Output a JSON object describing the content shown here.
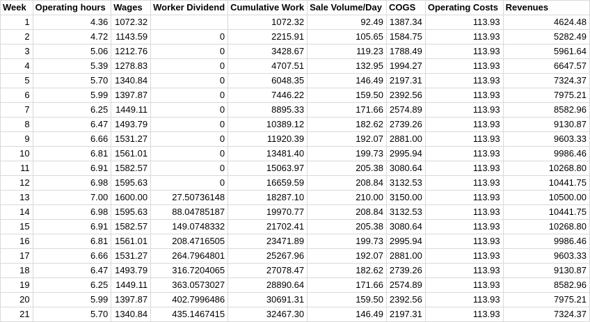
{
  "sheet": {
    "columns": [
      "Week",
      "Operating hours",
      "Wages",
      "Worker Dividend",
      "Cumulative Work",
      "Sale Volume/Day",
      "COGS",
      "Operating Costs",
      "Revenues"
    ],
    "rows": [
      [
        "1",
        "4.36",
        "1072.32",
        "",
        "1072.32",
        "92.49",
        "1387.34",
        "113.93",
        "4624.48"
      ],
      [
        "2",
        "4.72",
        "1143.59",
        "0",
        "2215.91",
        "105.65",
        "1584.75",
        "113.93",
        "5282.49"
      ],
      [
        "3",
        "5.06",
        "1212.76",
        "0",
        "3428.67",
        "119.23",
        "1788.49",
        "113.93",
        "5961.64"
      ],
      [
        "4",
        "5.39",
        "1278.83",
        "0",
        "4707.51",
        "132.95",
        "1994.27",
        "113.93",
        "6647.57"
      ],
      [
        "5",
        "5.70",
        "1340.84",
        "0",
        "6048.35",
        "146.49",
        "2197.31",
        "113.93",
        "7324.37"
      ],
      [
        "6",
        "5.99",
        "1397.87",
        "0",
        "7446.22",
        "159.50",
        "2392.56",
        "113.93",
        "7975.21"
      ],
      [
        "7",
        "6.25",
        "1449.11",
        "0",
        "8895.33",
        "171.66",
        "2574.89",
        "113.93",
        "8582.96"
      ],
      [
        "8",
        "6.47",
        "1493.79",
        "0",
        "10389.12",
        "182.62",
        "2739.26",
        "113.93",
        "9130.87"
      ],
      [
        "9",
        "6.66",
        "1531.27",
        "0",
        "11920.39",
        "192.07",
        "2881.00",
        "113.93",
        "9603.33"
      ],
      [
        "10",
        "6.81",
        "1561.01",
        "0",
        "13481.40",
        "199.73",
        "2995.94",
        "113.93",
        "9986.46"
      ],
      [
        "11",
        "6.91",
        "1582.57",
        "0",
        "15063.97",
        "205.38",
        "3080.64",
        "113.93",
        "10268.80"
      ],
      [
        "12",
        "6.98",
        "1595.63",
        "0",
        "16659.59",
        "208.84",
        "3132.53",
        "113.93",
        "10441.75"
      ],
      [
        "13",
        "7.00",
        "1600.00",
        "27.50736148",
        "18287.10",
        "210.00",
        "3150.00",
        "113.93",
        "10500.00"
      ],
      [
        "14",
        "6.98",
        "1595.63",
        "88.04785187",
        "19970.77",
        "208.84",
        "3132.53",
        "113.93",
        "10441.75"
      ],
      [
        "15",
        "6.91",
        "1582.57",
        "149.0748332",
        "21702.41",
        "205.38",
        "3080.64",
        "113.93",
        "10268.80"
      ],
      [
        "16",
        "6.81",
        "1561.01",
        "208.4716505",
        "23471.89",
        "199.73",
        "2995.94",
        "113.93",
        "9986.46"
      ],
      [
        "17",
        "6.66",
        "1531.27",
        "264.7964801",
        "25267.96",
        "192.07",
        "2881.00",
        "113.93",
        "9603.33"
      ],
      [
        "18",
        "6.47",
        "1493.79",
        "316.7204065",
        "27078.47",
        "182.62",
        "2739.26",
        "113.93",
        "9130.87"
      ],
      [
        "19",
        "6.25",
        "1449.11",
        "363.0573027",
        "28890.64",
        "171.66",
        "2574.89",
        "113.93",
        "8582.96"
      ],
      [
        "20",
        "5.99",
        "1397.87",
        "402.7996486",
        "30691.31",
        "159.50",
        "2392.56",
        "113.93",
        "7975.21"
      ],
      [
        "21",
        "5.70",
        "1340.84",
        "435.1467415",
        "32467.30",
        "146.49",
        "2197.31",
        "113.93",
        "7324.37"
      ]
    ]
  }
}
